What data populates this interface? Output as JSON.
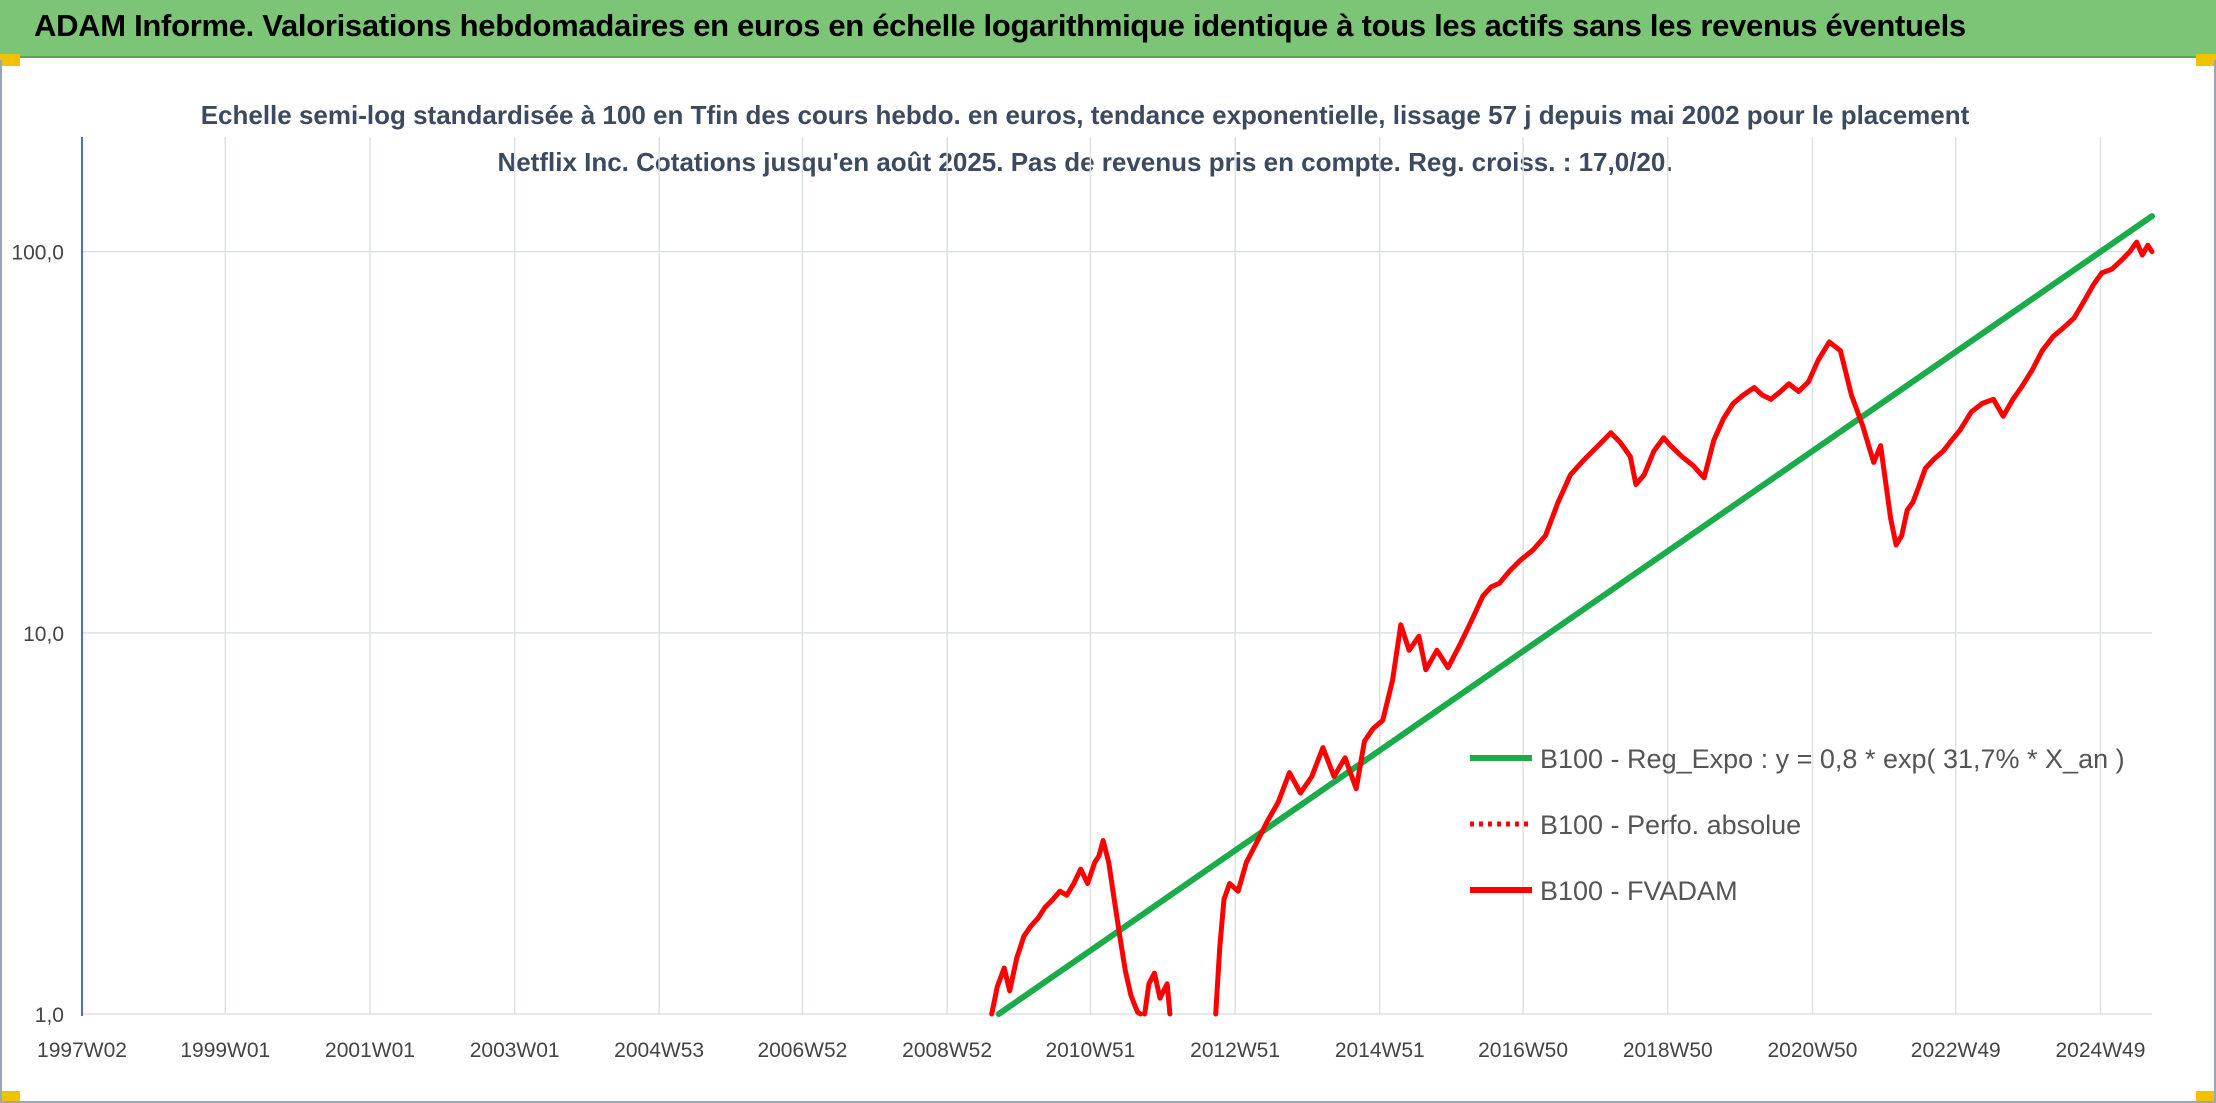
{
  "header": {
    "banner_title": "ADAM Informe. Valorisations hebdomadaires en euros en échelle logarithmique identique à tous les actifs sans les revenus éventuels"
  },
  "colors": {
    "banner": "#7cc576",
    "trend": "#1aab4b",
    "performance": "#ff0000",
    "fvadam": "#ff0000",
    "grid": "#dde1e6",
    "axis": "#4472c4"
  },
  "chart_data": {
    "type": "line",
    "title": "Echelle semi-log standardisée à 100 en Tfin des cours hebdo. en euros, tendance exponentielle, lissage 57 j depuis mai 2002 pour le placement Netflix Inc. Cotations jusqu'en août 2025. Pas de revenus pris en compte. Reg. croiss. : 17,0/20.",
    "x_scale": "weekly",
    "x_range": [
      "1997W02",
      "2025W34"
    ],
    "x_tick_labels": [
      "1997W02",
      "1999W01",
      "2001W01",
      "2003W01",
      "2004W53",
      "2006W52",
      "2008W52",
      "2010W51",
      "2012W51",
      "2014W51",
      "2016W50",
      "2018W50",
      "2020W50",
      "2022W49",
      "2024W49"
    ],
    "y_scale": "log",
    "ylim": [
      1,
      200
    ],
    "y_tick_labels": [
      "100,0",
      "10,0",
      "1,0"
    ],
    "y_ticks": [
      100,
      10,
      1
    ],
    "grid": true,
    "legend_position": "right",
    "series": [
      {
        "name": "B100 - Reg_Expo : y = 0,8 * exp( 31,7% *  X_an )",
        "style": "solid",
        "x": [
          "2009W37",
          "2025W34"
        ],
        "y": [
          1.0,
          124
        ]
      },
      {
        "name": "B100 - Perfo. absolue",
        "style": "dotted",
        "x": [],
        "y": []
      },
      {
        "name": "B100 - FVADAM",
        "style": "solid",
        "segments": [
          {
            "x": [
              "2009W32",
              "2009W36",
              "2009W41",
              "2009W45",
              "2009W50",
              "2010W03",
              "2010W08",
              "2010W13",
              "2010W18",
              "2010W24",
              "2010W29",
              "2010W34",
              "2010W39",
              "2010W44",
              "2010W49",
              "2011W02",
              "2011W05",
              "2011W08",
              "2011W12",
              "2011W16",
              "2011W20",
              "2011W24",
              "2011W28",
              "2011W31",
              "2011W33",
              "2011W35"
            ],
            "y": [
              1.0,
              1.18,
              1.32,
              1.15,
              1.4,
              1.6,
              1.7,
              1.78,
              1.9,
              2.0,
              2.1,
              2.05,
              2.2,
              2.4,
              2.2,
              2.5,
              2.6,
              2.85,
              2.5,
              2.0,
              1.6,
              1.3,
              1.12,
              1.05,
              1.01,
              1.0
            ]
          },
          {
            "x": [
              "2011W38",
              "2011W41",
              "2011W45",
              "2011W49",
              "2012W02",
              "2012W04"
            ],
            "y": [
              1.0,
              1.2,
              1.28,
              1.1,
              1.2,
              1.0
            ]
          },
          {
            "x": [
              "2012W37",
              "2012W40",
              "2012W43",
              "2012W47",
              "2013W01",
              "2013W07",
              "2013W14",
              "2013W22",
              "2013W30",
              "2013W38",
              "2013W46",
              "2014W02",
              "2014W10",
              "2014W18",
              "2014W26",
              "2014W34",
              "2014W40",
              "2014W46",
              "2015W01",
              "2015W08",
              "2015W14",
              "2015W20",
              "2015W27",
              "2015W32",
              "2015W40",
              "2015W48",
              "2016W05",
              "2016W13",
              "2016W21",
              "2016W27",
              "2016W33",
              "2016W40",
              "2016W48",
              "2017W05",
              "2017W14",
              "2017W23",
              "2017W32",
              "2017W42",
              "2017W52",
              "2018W09",
              "2018W16",
              "2018W23",
              "2018W27",
              "2018W33",
              "2018W40",
              "2018W47",
              "2018W52",
              "2019W08",
              "2019W16",
              "2019W24",
              "2019W31",
              "2019W38",
              "2019W45",
              "2019W52",
              "2020W08",
              "2020W14",
              "2020W20",
              "2020W27",
              "2020W33",
              "2020W40",
              "2020W47",
              "2021W02",
              "2021W10",
              "2021W18",
              "2021W26",
              "2021W34",
              "2021W42",
              "2021W47",
              "2022W02",
              "2022W06",
              "2022W10",
              "2022W14",
              "2022W18",
              "2022W22",
              "2022W27",
              "2022W33",
              "2022W40",
              "2022W46",
              "2022W52",
              "2023W08",
              "2023W16",
              "2023W24",
              "2023W31",
              "2023W38",
              "2023W44",
              "2023W52",
              "2024W07",
              "2024W15",
              "2024W22",
              "2024W30",
              "2024W37",
              "2024W44",
              "2024W50",
              "2025W05",
              "2025W12",
              "2025W18",
              "2025W23",
              "2025W27",
              "2025W31",
              "2025W34"
            ],
            "y": [
              1.0,
              1.5,
              2.0,
              2.2,
              2.1,
              2.5,
              2.8,
              3.2,
              3.6,
              4.3,
              3.8,
              4.2,
              5.0,
              4.2,
              4.7,
              3.9,
              5.2,
              5.6,
              5.9,
              7.5,
              10.5,
              9.0,
              9.8,
              8.0,
              9.0,
              8.1,
              9.4,
              10.8,
              12.5,
              13.2,
              13.5,
              14.5,
              15.5,
              16.5,
              18.0,
              22.0,
              26.0,
              28.5,
              31.0,
              33.5,
              31.5,
              29.0,
              24.5,
              26.0,
              30.0,
              32.5,
              31.0,
              29.0,
              27.5,
              25.5,
              32.0,
              36.5,
              40.0,
              42.0,
              44.0,
              42.0,
              41.0,
              43.0,
              45.0,
              43.0,
              45.5,
              52.0,
              58.0,
              55.0,
              42.0,
              35.0,
              28.0,
              31.0,
              20.0,
              17.0,
              18.0,
              21.0,
              22.0,
              24.0,
              27.0,
              28.5,
              30.0,
              32.0,
              34.0,
              38.0,
              40.0,
              41.0,
              37.0,
              41.0,
              44.0,
              49.0,
              55.0,
              60.0,
              63.0,
              67.0,
              74.0,
              82.0,
              88.0,
              90.0,
              95.0,
              100.0,
              106.0,
              98.0,
              104.0,
              100.0
            ]
          }
        ]
      }
    ]
  }
}
